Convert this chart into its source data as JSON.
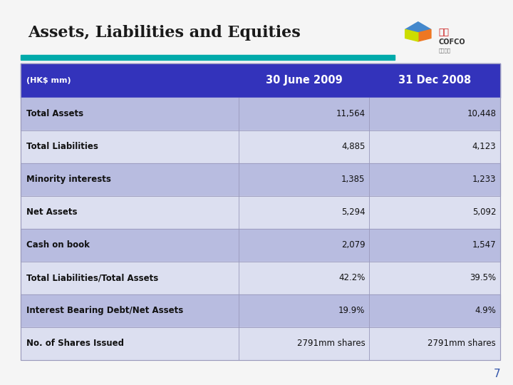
{
  "title": "Assets, Liabilities and Equities",
  "title_color": "#1a1a1a",
  "title_fontsize": 16,
  "header_bg": "#3333bb",
  "header_text_color": "#ffffff",
  "row_bg_dark": "#b8bce0",
  "row_bg_light": "#dcdff0",
  "row_label_color": "#111111",
  "row_value_color": "#111111",
  "col_header": "(HK$ mm)",
  "col1": "30 June 2009",
  "col2": "31 Dec 2008",
  "rows": [
    {
      "label": "Total Assets",
      "v1": "11,564",
      "v2": "10,448",
      "bold_v": false
    },
    {
      "label": "Total Liabilities",
      "v1": "4,885",
      "v2": "4,123",
      "bold_v": false
    },
    {
      "label": "Minority interests",
      "v1": "1,385",
      "v2": "1,233",
      "bold_v": false
    },
    {
      "label": "Net Assets",
      "v1": "5,294",
      "v2": "5,092",
      "bold_v": false
    },
    {
      "label": "Cash on book",
      "v1": "2,079",
      "v2": "1,547",
      "bold_v": false
    },
    {
      "label": "Total Liabilities/Total Assets",
      "v1": "42.2%",
      "v2": "39.5%",
      "bold_v": false
    },
    {
      "label": "Interest Bearing Debt/Net Assets",
      "v1": "19.9%",
      "v2": "4.9%",
      "bold_v": false
    },
    {
      "label": "No. of Shares Issued",
      "v1": "2791mm shares",
      "v2": "2791mm shares",
      "bold_v": false
    }
  ],
  "page_number": "7",
  "bg_color": "#f5f5f5",
  "teal_line_color": "#00aaaa",
  "border_color": "#9999bb",
  "logo_box_color": "#eeeeee"
}
